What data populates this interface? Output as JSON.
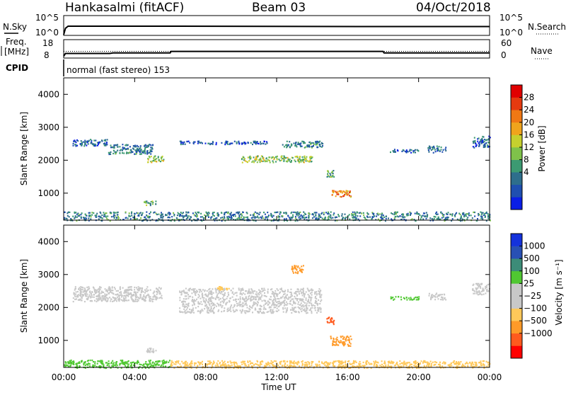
{
  "header": {
    "station": "Hankasalmi (fitACF)",
    "beam": "Beam 03",
    "date": "04/Oct/2018"
  },
  "top_panel": {
    "left_label": "N.Sky",
    "left_ticks": [
      "10^5",
      "10^0"
    ],
    "right_label": "N.Search",
    "right_ticks": [
      "10^5",
      "10^0"
    ]
  },
  "freq_panel": {
    "left_label_line1": "Freq.",
    "left_label_line2": "[MHz]",
    "left_ticks": [
      "18",
      "8"
    ],
    "right_label": "Nave",
    "right_ticks": [
      "60",
      "0"
    ],
    "cpid_label": "CPID"
  },
  "cpid_text": "normal (fast stereo) 153",
  "colors": {
    "power_scale": [
      "#0a1ee6",
      "#1f4fb0",
      "#2e6e8c",
      "#3c9a72",
      "#7fc24a",
      "#c6d02e",
      "#f0a41c",
      "#f07814",
      "#e53a10",
      "#e00000"
    ],
    "velocity_scale": [
      "#ff0000",
      "#ff5a1e",
      "#ff9a28",
      "#ffc85a",
      "#c8c8c8",
      "#c8c8c8",
      "#50c832",
      "#3c8c78",
      "#2850b4",
      "#1432dc"
    ]
  },
  "power_colorbar": {
    "label": "Power [dB]",
    "ticks": [
      "28",
      "24",
      "20",
      "16",
      "12",
      "8",
      "4"
    ]
  },
  "velocity_colorbar": {
    "label": "Velocity [m s⁻¹]",
    "ticks": [
      "1000",
      "500",
      "100",
      "25",
      "−25",
      "−100",
      "−500",
      "−1000"
    ]
  },
  "chart_data": [
    {
      "type": "heatmap",
      "quantity": "Power",
      "title": "",
      "xlabel": "Time UT",
      "ylabel": "Slant Range [km]",
      "x_ticks": [
        "00:00",
        "04:00",
        "08:00",
        "12:00",
        "16:00",
        "20:00",
        "00:00"
      ],
      "xlim_hours": [
        0,
        24
      ],
      "ylim_km": [
        180,
        4500
      ],
      "y_ticks": [
        1000,
        2000,
        3000,
        4000
      ],
      "value_range_db": [
        0,
        30
      ],
      "regions": [
        {
          "t0": 0.5,
          "t1": 2.5,
          "r0": 2450,
          "r1": 2650,
          "value": 6
        },
        {
          "t0": 2.5,
          "t1": 5.0,
          "r0": 2200,
          "r1": 2500,
          "value": 8
        },
        {
          "t0": 4.7,
          "t1": 5.6,
          "r0": 1950,
          "r1": 2150,
          "value": 14
        },
        {
          "t0": 4.5,
          "t1": 5.2,
          "r0": 650,
          "r1": 780,
          "value": 12
        },
        {
          "t0": 6.5,
          "t1": 11.5,
          "r0": 2500,
          "r1": 2600,
          "value": 5
        },
        {
          "t0": 10.0,
          "t1": 14.0,
          "r0": 1950,
          "r1": 2150,
          "value": 14
        },
        {
          "t0": 12.3,
          "t1": 14.6,
          "r0": 2400,
          "r1": 2600,
          "value": 8
        },
        {
          "t0": 14.8,
          "t1": 15.2,
          "r0": 1500,
          "r1": 1750,
          "value": 12
        },
        {
          "t0": 15.0,
          "t1": 16.2,
          "r0": 900,
          "r1": 1100,
          "value": 22
        },
        {
          "t0": 18.3,
          "t1": 20.0,
          "r0": 2250,
          "r1": 2350,
          "value": 6
        },
        {
          "t0": 20.5,
          "t1": 21.5,
          "r0": 2250,
          "r1": 2450,
          "value": 7
        },
        {
          "t0": 23.0,
          "t1": 24.0,
          "r0": 2400,
          "r1": 2750,
          "value": 6
        },
        {
          "t0": 0.0,
          "t1": 24.0,
          "r0": 180,
          "r1": 450,
          "value": 8
        }
      ]
    },
    {
      "type": "heatmap",
      "quantity": "Velocity",
      "title": "",
      "xlabel": "Time UT",
      "ylabel": "Slant Range [km]",
      "x_ticks": [
        "00:00",
        "04:00",
        "08:00",
        "12:00",
        "16:00",
        "20:00",
        "00:00"
      ],
      "xlim_hours": [
        0,
        24
      ],
      "ylim_km": [
        180,
        4500
      ],
      "y_ticks": [
        1000,
        2000,
        3000,
        4000
      ],
      "value_range_ms": [
        -1000,
        1000
      ],
      "regions": [
        {
          "t0": 0.5,
          "t1": 5.5,
          "r0": 2200,
          "r1": 2650,
          "value": 0
        },
        {
          "t0": 4.5,
          "t1": 5.2,
          "r0": 650,
          "r1": 780,
          "value": 0
        },
        {
          "t0": 6.5,
          "t1": 14.5,
          "r0": 1850,
          "r1": 2600,
          "value": 0
        },
        {
          "t0": 8.6,
          "t1": 9.3,
          "r0": 2550,
          "r1": 2650,
          "value": -60
        },
        {
          "t0": 12.8,
          "t1": 13.5,
          "r0": 3050,
          "r1": 3300,
          "value": -150
        },
        {
          "t0": 14.8,
          "t1": 15.2,
          "r0": 1500,
          "r1": 1750,
          "value": -900
        },
        {
          "t0": 15.0,
          "t1": 16.2,
          "r0": 850,
          "r1": 1150,
          "value": -300
        },
        {
          "t0": 18.3,
          "t1": 20.0,
          "r0": 2250,
          "r1": 2350,
          "value": 50
        },
        {
          "t0": 20.5,
          "t1": 21.5,
          "r0": 2250,
          "r1": 2450,
          "value": 0
        },
        {
          "t0": 23.0,
          "t1": 24.0,
          "r0": 2400,
          "r1": 2750,
          "value": 0
        },
        {
          "t0": 0.0,
          "t1": 6.0,
          "r0": 180,
          "r1": 420,
          "value": 60
        },
        {
          "t0": 6.0,
          "t1": 24.0,
          "r0": 180,
          "r1": 400,
          "value": -60
        }
      ]
    },
    {
      "type": "line",
      "quantity": "N.Sky / N.Search",
      "ylim": [
        1,
        100000
      ],
      "x_hours": [
        0,
        0.1,
        0.2,
        6,
        18,
        24
      ],
      "y_sky_log10": [
        0,
        0,
        0.3,
        0.3,
        0.3,
        0.3
      ]
    },
    {
      "type": "line",
      "quantity": "Freq. / Nave",
      "freq_ylim_mhz": [
        8,
        18
      ],
      "x_hours": [
        0,
        0.1,
        2.6,
        2.8,
        6,
        6.05,
        18,
        18.05,
        24
      ],
      "freq_mhz": [
        9,
        10.5,
        10.5,
        10.8,
        10.8,
        11.6,
        11.6,
        10.8,
        10.8
      ],
      "nave_level": 22
    }
  ]
}
